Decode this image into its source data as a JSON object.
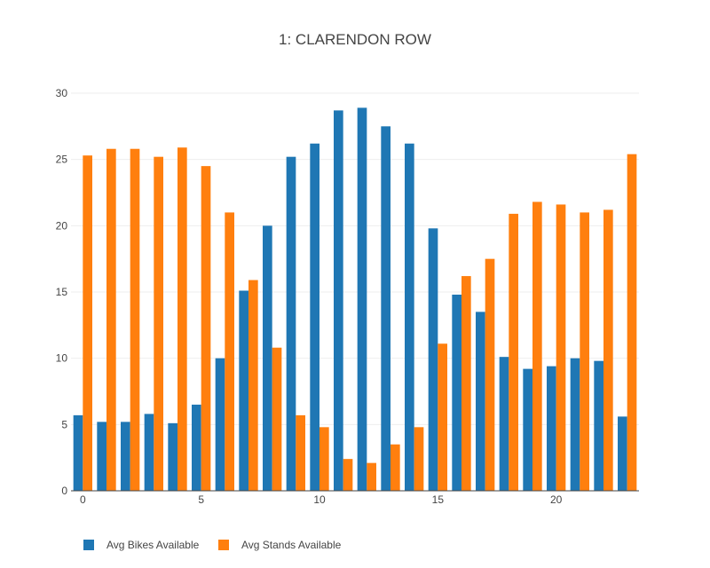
{
  "chart_data": {
    "type": "bar",
    "title": "1: CLARENDON ROW",
    "xlabel": "",
    "ylabel": "",
    "x": [
      0,
      1,
      2,
      3,
      4,
      5,
      6,
      7,
      8,
      9,
      10,
      11,
      12,
      13,
      14,
      15,
      16,
      17,
      18,
      19,
      20,
      21,
      22,
      23
    ],
    "xticks": [
      0,
      5,
      10,
      15,
      20
    ],
    "yticks": [
      0,
      5,
      10,
      15,
      20,
      25,
      30
    ],
    "ylim": [
      0,
      30
    ],
    "xlim": [
      -0.5,
      23.5
    ],
    "grid": true,
    "legend_position": "bottom-left",
    "series": [
      {
        "name": "Avg Bikes Available",
        "color": "#1f77b4",
        "values": [
          5.7,
          5.2,
          5.2,
          5.8,
          5.1,
          6.5,
          10.0,
          15.1,
          20.0,
          25.2,
          26.2,
          28.7,
          28.9,
          27.5,
          26.2,
          19.8,
          14.8,
          13.5,
          10.1,
          9.2,
          9.4,
          10.0,
          9.8,
          5.6
        ]
      },
      {
        "name": "Avg Stands Available",
        "color": "#ff7f0e",
        "values": [
          25.3,
          25.8,
          25.8,
          25.2,
          25.9,
          24.5,
          21.0,
          15.9,
          10.8,
          5.7,
          4.8,
          2.4,
          2.1,
          3.5,
          4.8,
          11.1,
          16.2,
          17.5,
          20.9,
          21.8,
          21.6,
          21.0,
          21.2,
          25.4
        ]
      }
    ]
  }
}
